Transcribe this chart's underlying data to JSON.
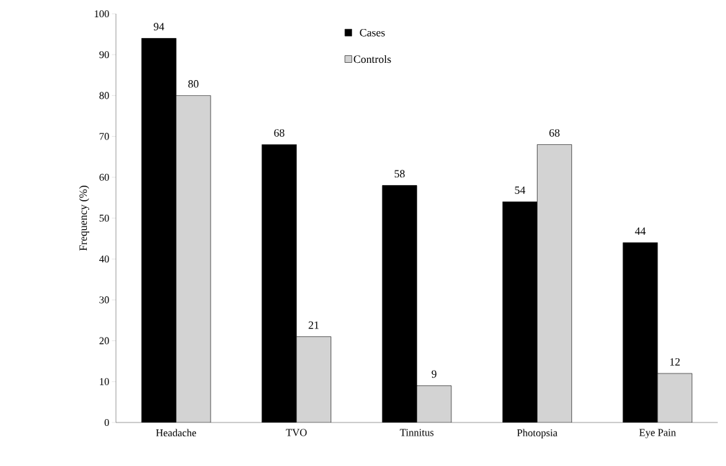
{
  "chart_data": {
    "type": "bar",
    "ylabel": "Frequency (%)",
    "categories": [
      "Headache",
      "TVO",
      "Tinnitus",
      "Photopsia",
      "Eye Pain"
    ],
    "series": [
      {
        "name": "Cases",
        "color": "#000000",
        "values": [
          94,
          68,
          58,
          54,
          44
        ]
      },
      {
        "name": "Controls",
        "color": "#d3d3d3",
        "values": [
          80,
          21,
          9,
          68,
          12
        ]
      }
    ],
    "ylim": [
      0,
      100
    ],
    "yticks": [
      0,
      10,
      20,
      30,
      40,
      50,
      60,
      70,
      80,
      90,
      100
    ],
    "data_labels": true,
    "legend": "top",
    "grid": false
  }
}
